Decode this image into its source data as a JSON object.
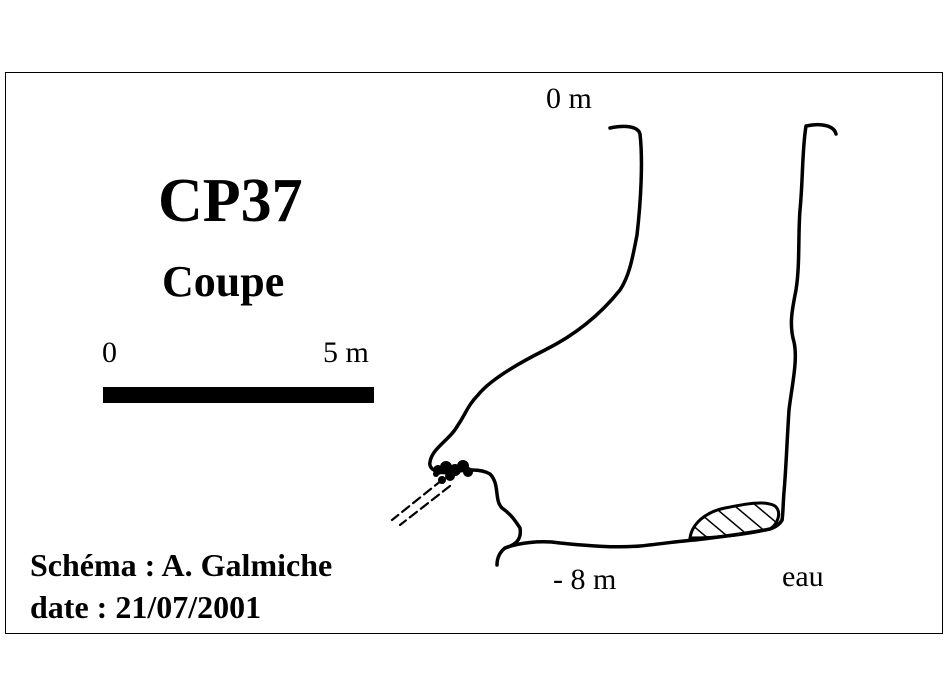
{
  "diagram": {
    "title": "CP37",
    "subtitle": "Coupe",
    "scale": {
      "start_label": "0",
      "end_label": "5 m"
    },
    "depth_labels": {
      "top": "0 m",
      "bottom": "- 8  m"
    },
    "water_label": "eau",
    "credits": {
      "author": "Schéma : A. Galmiche",
      "date": "date : 21/07/2001"
    },
    "line_color": "#000000",
    "background": "#ffffff"
  }
}
